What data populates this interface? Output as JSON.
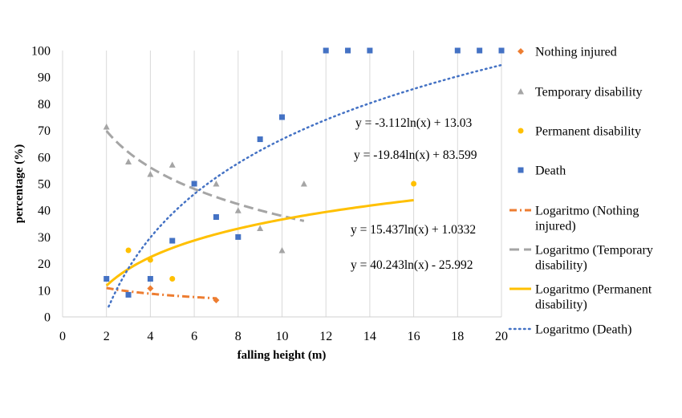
{
  "chart_data": {
    "type": "scatter",
    "title": "",
    "xlabel": "falling height (m)",
    "ylabel": "percentage (%)",
    "xlim": [
      0,
      20
    ],
    "ylim": [
      0,
      100
    ],
    "x_ticks": [
      "0",
      "2",
      "4",
      "6",
      "8",
      "10",
      "12",
      "14",
      "16",
      "18",
      "20"
    ],
    "y_ticks": [
      "0",
      "10",
      "20",
      "30",
      "40",
      "50",
      "60",
      "70",
      "80",
      "90",
      "100"
    ],
    "grid": "vertical",
    "legend_position": "right",
    "series": [
      {
        "name": "Nothing injured",
        "marker": "diamond",
        "color": "#ED7D31",
        "points": [
          [
            4,
            10.7
          ],
          [
            7,
            6.3
          ]
        ]
      },
      {
        "name": "Temporary disability",
        "marker": "triangle",
        "color": "#A5A5A5",
        "points": [
          [
            2,
            71.4
          ],
          [
            3,
            58.3
          ],
          [
            4,
            53.6
          ],
          [
            5,
            57.1
          ],
          [
            7,
            50
          ],
          [
            8,
            40
          ],
          [
            9,
            33.3
          ],
          [
            10,
            25
          ],
          [
            11,
            50
          ]
        ]
      },
      {
        "name": "Permanent disability",
        "marker": "circle",
        "color": "#FFC000",
        "points": [
          [
            3,
            25
          ],
          [
            4,
            21.4
          ],
          [
            5,
            14.3
          ],
          [
            16,
            50
          ]
        ]
      },
      {
        "name": "Death",
        "marker": "square",
        "color": "#4472C4",
        "points": [
          [
            2,
            14.3
          ],
          [
            3,
            8.3
          ],
          [
            4,
            14.3
          ],
          [
            5,
            28.6
          ],
          [
            6,
            50
          ],
          [
            7,
            37.5
          ],
          [
            8,
            30
          ],
          [
            9,
            66.7
          ],
          [
            10,
            75
          ],
          [
            12,
            100
          ],
          [
            13,
            100
          ],
          [
            14,
            100
          ],
          [
            18,
            100
          ],
          [
            19,
            100
          ],
          [
            20,
            100
          ]
        ]
      }
    ],
    "trendlines": [
      {
        "name": "Logaritmo (Nothing injured)",
        "legend_lines": [
          "Logaritmo (Nothing",
          "injured)"
        ],
        "color": "#ED7D31",
        "style": "dash-dot",
        "a": -3.112,
        "b": 13.03,
        "x_range": [
          2,
          7
        ],
        "equation": "y = -3.112ln(x) + 13.03"
      },
      {
        "name": "Logaritmo (Temporary disability)",
        "legend_lines": [
          "Logaritmo (Temporary",
          "disability)"
        ],
        "color": "#A5A5A5",
        "style": "dashed",
        "a": -19.84,
        "b": 83.599,
        "x_range": [
          2,
          11
        ],
        "equation": "y = -19.84ln(x) + 83.599"
      },
      {
        "name": "Logaritmo (Permanent disability)",
        "legend_lines": [
          "Logaritmo (Permanent",
          "disability)"
        ],
        "color": "#FFC000",
        "style": "solid",
        "a": 15.437,
        "b": 1.0332,
        "x_range": [
          2,
          16
        ],
        "equation": "y = 15.437ln(x) + 1.0332"
      },
      {
        "name": "Logaritmo (Death)",
        "legend_lines": [
          "Logaritmo (Death)"
        ],
        "color": "#4472C4",
        "style": "dotted",
        "a": 40.243,
        "b": -25.992,
        "x_range": [
          2.1,
          20
        ],
        "equation": "y = 40.243ln(x) - 25.992"
      }
    ]
  }
}
